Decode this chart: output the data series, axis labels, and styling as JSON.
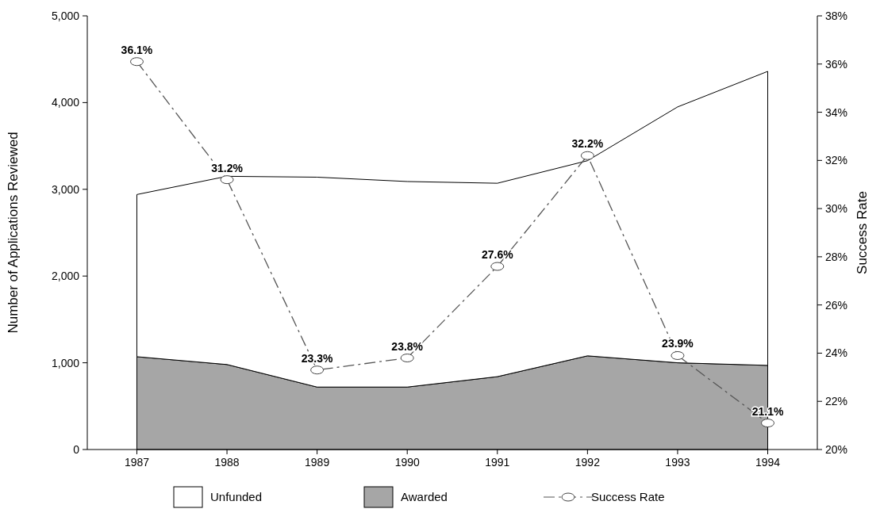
{
  "chart_data": {
    "type": "area",
    "stacked": true,
    "categories": [
      "1987",
      "1988",
      "1989",
      "1990",
      "1991",
      "1992",
      "1993",
      "1994"
    ],
    "series": [
      {
        "name": "Awarded",
        "color": "#a6a6a6",
        "values": [
          1070,
          980,
          720,
          720,
          840,
          1080,
          1000,
          970
        ]
      },
      {
        "name": "Unfunded",
        "color": "#ffffff",
        "values": [
          1870,
          2170,
          2420,
          2370,
          2230,
          2250,
          2950,
          3390
        ]
      },
      {
        "name": "Success Rate",
        "type": "line",
        "axis": "y2",
        "color": "#555555",
        "line_style": "dashed",
        "marker": "circle",
        "values": [
          36.1,
          31.2,
          23.3,
          23.8,
          27.6,
          32.2,
          23.9,
          21.1
        ],
        "value_labels": [
          "36.1%",
          "31.2%",
          "23.3%",
          "23.8%",
          "27.6%",
          "32.2%",
          "23.9%",
          "21.1%"
        ]
      }
    ],
    "ylabel": "Number of Applications Reviewed",
    "y2label": "Success Rate",
    "ylim": [
      0,
      5000
    ],
    "yticks": [
      0,
      {
        "value": 1000,
        "label": "1,000"
      },
      {
        "value": 2000,
        "label": "2,000"
      },
      {
        "value": 3000,
        "label": "3,000"
      },
      {
        "value": 4000,
        "label": "4,000"
      },
      {
        "value": 5000,
        "label": "5,000"
      }
    ],
    "y2lim": [
      20,
      38
    ],
    "y2ticks": [
      {
        "value": 20,
        "label": "20%"
      },
      {
        "value": 22,
        "label": "22%"
      },
      {
        "value": 24,
        "label": "24%"
      },
      {
        "value": 26,
        "label": "26%"
      },
      {
        "value": 28,
        "label": "28%"
      },
      {
        "value": 30,
        "label": "30%"
      },
      {
        "value": 32,
        "label": "32%"
      },
      {
        "value": 34,
        "label": "34%"
      },
      {
        "value": 36,
        "label": "36%"
      },
      {
        "value": 38,
        "label": "38%"
      }
    ],
    "legend": "bottom",
    "grid": false
  }
}
